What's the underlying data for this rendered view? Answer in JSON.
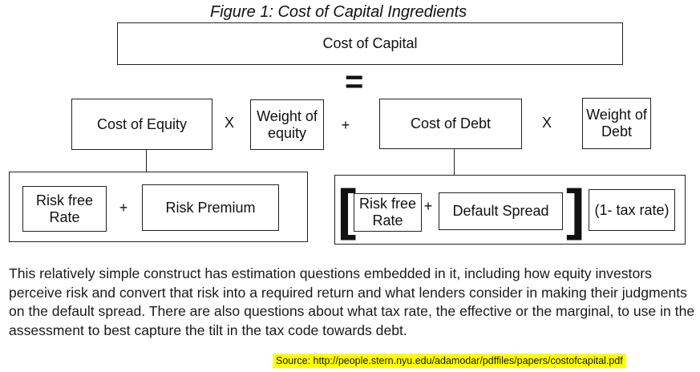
{
  "figure_title": "Figure 1: Cost of Capital Ingredients",
  "diagram": {
    "cost_of_capital": "Cost of Capital",
    "equals": "=",
    "cost_of_equity": "Cost of Equity",
    "times_1": "X",
    "weight_of_equity": "Weight of equity",
    "plus_main": "+",
    "cost_of_debt": "Cost of Debt",
    "times_2": "X",
    "weight_of_debt": "Weight of Debt",
    "equity_parts": {
      "risk_free_rate": "Risk free Rate",
      "plus": "+",
      "risk_premium": "Risk Premium"
    },
    "debt_parts": {
      "left_bracket": "[",
      "risk_free_rate": "Risk free Rate",
      "plus": "+",
      "default_spread": "Default Spread",
      "right_bracket": "]",
      "tax_factor": "(1- tax rate)"
    }
  },
  "paragraph": "This relatively simple construct has estimation questions embedded in it, including how equity investors perceive risk and convert that risk into a required return and what lenders consider in making their judgments on the default spread. There are also questions about what tax rate, the effective or the marginal, to use in the assessment to best capture the tilt in the tax code towards debt.",
  "source": "Source: http://people.stern.nyu.edu/adamodar/pdffiles/papers/costofcapital.pdf"
}
